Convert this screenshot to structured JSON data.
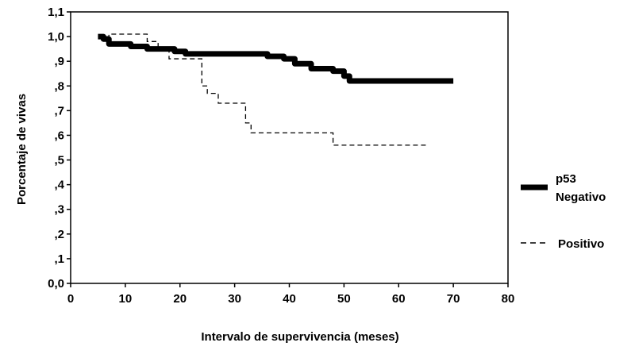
{
  "chart_data": {
    "type": "line",
    "title": "",
    "xlabel": "Intervalo de supervivencia (meses)",
    "ylabel": "Porcentaje de vivas",
    "xlim": [
      0,
      80
    ],
    "ylim": [
      0,
      1.1
    ],
    "x_ticks": [
      0,
      10,
      20,
      30,
      40,
      50,
      60,
      70,
      80
    ],
    "x_tick_labels": [
      "0",
      "10",
      "20",
      "30",
      "40",
      "50",
      "60",
      "70",
      "80"
    ],
    "y_ticks": [
      0,
      0.1,
      0.2,
      0.3,
      0.4,
      0.5,
      0.6,
      0.7,
      0.8,
      0.9,
      1.0,
      1.1
    ],
    "y_tick_labels": [
      "0,0",
      ",1",
      ",2",
      ",3",
      ",4",
      ",5",
      ",6",
      ",7",
      ",8",
      ",9",
      "1,0",
      "1,1"
    ],
    "legend_placement": "right",
    "legend_title": "p53",
    "grid": false,
    "series": [
      {
        "name": "Negativo",
        "style": "solid-thick",
        "color": "#000000",
        "x": [
          5,
          6,
          7,
          11,
          14,
          19,
          21,
          33,
          36,
          39,
          41,
          44,
          48,
          50,
          51,
          70
        ],
        "y": [
          1.0,
          0.99,
          0.97,
          0.96,
          0.95,
          0.94,
          0.93,
          0.93,
          0.92,
          0.91,
          0.89,
          0.87,
          0.86,
          0.84,
          0.82,
          0.82
        ]
      },
      {
        "name": "Positivo",
        "style": "dashed",
        "color": "#000000",
        "x": [
          5,
          7,
          14,
          16,
          18,
          24,
          25,
          27,
          32,
          33,
          48,
          65
        ],
        "y": [
          1.0,
          1.01,
          0.98,
          0.95,
          0.91,
          0.8,
          0.77,
          0.73,
          0.65,
          0.61,
          0.56,
          0.56
        ]
      }
    ]
  }
}
